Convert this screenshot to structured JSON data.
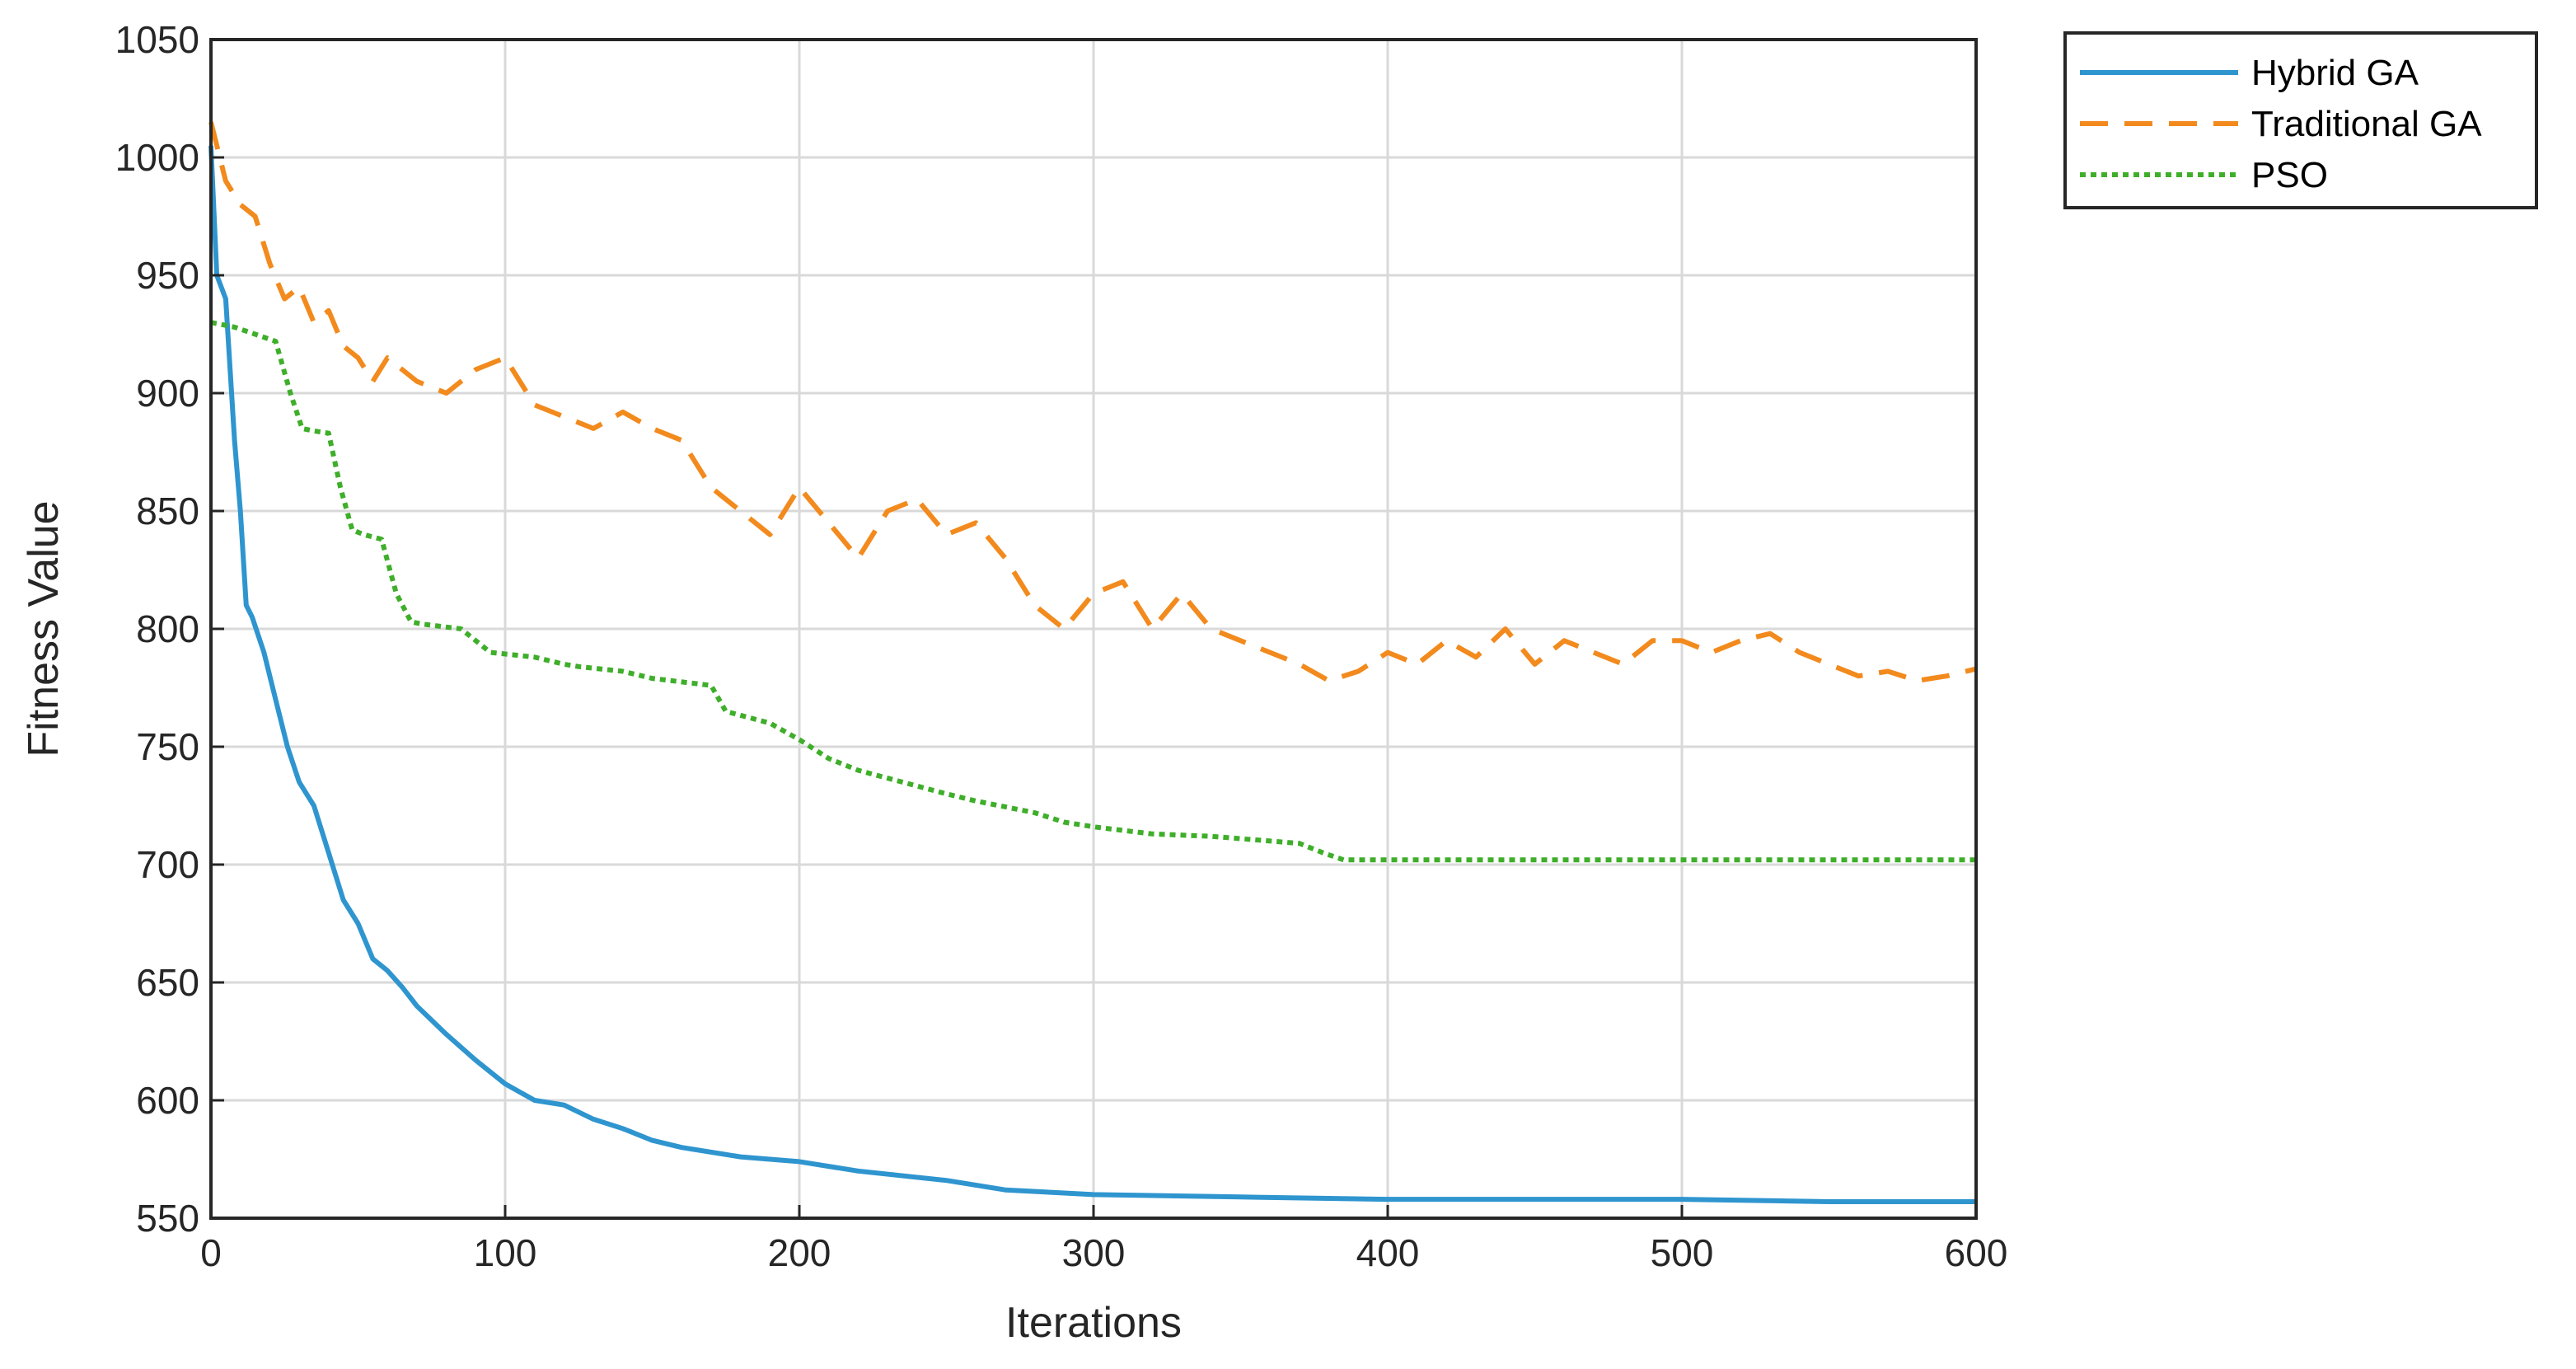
{
  "chart_data": {
    "type": "line",
    "title": "",
    "xlabel": "Iterations",
    "ylabel": "Fitness Value",
    "xlim": [
      0,
      600
    ],
    "ylim": [
      550,
      1050
    ],
    "xticks": [
      0,
      100,
      200,
      300,
      400,
      500,
      600
    ],
    "yticks": [
      550,
      600,
      650,
      700,
      750,
      800,
      850,
      900,
      950,
      1000,
      1050
    ],
    "grid": true,
    "legend_position": "outside-top-right",
    "series": [
      {
        "name": "Hybrid GA",
        "color": "#2f95cf",
        "style": "solid",
        "x": [
          0,
          2,
          5,
          8,
          10,
          12,
          14,
          18,
          22,
          26,
          30,
          35,
          40,
          45,
          50,
          55,
          60,
          65,
          70,
          80,
          90,
          100,
          110,
          120,
          130,
          140,
          150,
          160,
          180,
          200,
          220,
          250,
          270,
          300,
          350,
          400,
          450,
          500,
          550,
          600
        ],
        "y": [
          1005,
          950,
          940,
          880,
          850,
          810,
          805,
          790,
          770,
          750,
          735,
          725,
          705,
          685,
          675,
          660,
          655,
          648,
          640,
          628,
          617,
          607,
          600,
          598,
          592,
          588,
          583,
          580,
          576,
          574,
          570,
          566,
          562,
          560,
          559,
          558,
          558,
          558,
          557,
          557
        ]
      },
      {
        "name": "Traditional GA",
        "color": "#f28a1d",
        "style": "dashed",
        "x": [
          0,
          5,
          10,
          15,
          20,
          25,
          30,
          35,
          40,
          45,
          50,
          55,
          60,
          70,
          80,
          90,
          100,
          110,
          120,
          130,
          140,
          150,
          160,
          170,
          180,
          190,
          200,
          210,
          220,
          230,
          240,
          250,
          260,
          270,
          280,
          290,
          300,
          310,
          320,
          330,
          340,
          350,
          360,
          370,
          380,
          390,
          400,
          410,
          420,
          430,
          440,
          450,
          460,
          470,
          480,
          490,
          500,
          510,
          520,
          530,
          540,
          550,
          560,
          570,
          580,
          590,
          600
        ],
        "y": [
          1015,
          990,
          980,
          975,
          955,
          940,
          945,
          930,
          935,
          920,
          915,
          905,
          915,
          905,
          900,
          910,
          915,
          895,
          890,
          885,
          892,
          885,
          880,
          860,
          850,
          840,
          860,
          845,
          830,
          850,
          855,
          840,
          845,
          830,
          810,
          800,
          815,
          820,
          800,
          815,
          800,
          795,
          790,
          785,
          778,
          782,
          790,
          785,
          795,
          788,
          800,
          785,
          795,
          790,
          785,
          795,
          795,
          790,
          795,
          798,
          790,
          785,
          780,
          782,
          778,
          780,
          783
        ]
      },
      {
        "name": "PSO",
        "color": "#3fae2a",
        "style": "dotted",
        "x": [
          0,
          8,
          15,
          22,
          27,
          31,
          35,
          40,
          44,
          48,
          52,
          58,
          63,
          68,
          72,
          85,
          95,
          110,
          120,
          125,
          140,
          150,
          170,
          175,
          190,
          200,
          210,
          220,
          235,
          250,
          260,
          280,
          290,
          300,
          320,
          340,
          360,
          370,
          378,
          385,
          400,
          450,
          500,
          550,
          600
        ],
        "y": [
          930,
          928,
          925,
          922,
          900,
          885,
          884,
          883,
          860,
          842,
          840,
          838,
          815,
          803,
          802,
          800,
          790,
          788,
          785,
          784,
          782,
          779,
          776,
          765,
          760,
          753,
          745,
          740,
          735,
          730,
          727,
          722,
          718,
          716,
          713,
          712,
          710,
          709,
          705,
          702,
          702,
          702,
          702,
          702,
          702
        ]
      }
    ]
  }
}
